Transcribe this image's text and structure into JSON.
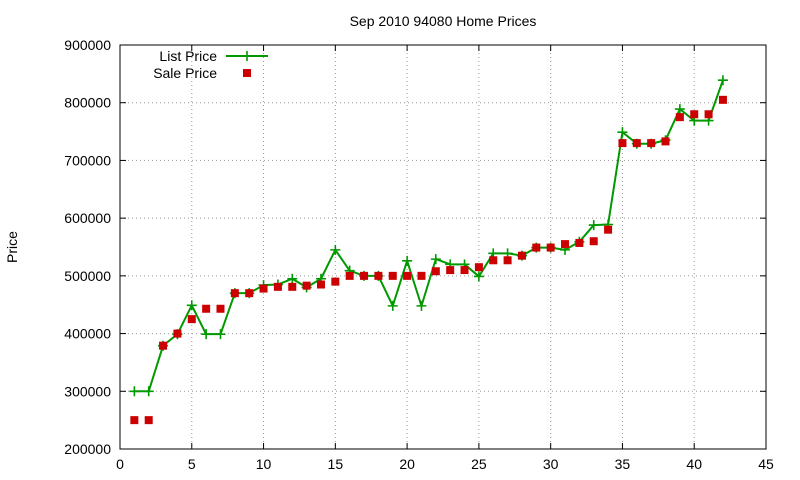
{
  "chart_data": {
    "type": "line",
    "title": "Sep 2010 94080 Home Prices",
    "xlabel": "",
    "ylabel": "Price",
    "xlim": [
      0,
      45
    ],
    "ylim": [
      200000,
      900000
    ],
    "xticks": [
      "0",
      "5",
      "10",
      "15",
      "20",
      "25",
      "30",
      "35",
      "40",
      "45"
    ],
    "yticks": [
      "200000",
      "300000",
      "400000",
      "500000",
      "600000",
      "700000",
      "800000",
      "900000"
    ],
    "grid": true,
    "legend_position": "top-left",
    "series": [
      {
        "name": "List Price",
        "style": "line-with-plus-markers",
        "color": "#009900",
        "x": [
          1,
          2,
          3,
          4,
          5,
          6,
          7,
          8,
          9,
          10,
          11,
          12,
          13,
          14,
          15,
          16,
          17,
          18,
          19,
          20,
          21,
          22,
          23,
          24,
          25,
          26,
          27,
          28,
          29,
          30,
          31,
          32,
          33,
          34,
          35,
          36,
          37,
          38,
          39,
          40,
          41,
          42
        ],
        "values": [
          300000,
          300000,
          379000,
          399000,
          449000,
          399000,
          399000,
          470000,
          470000,
          484000,
          485000,
          495000,
          480000,
          495000,
          545000,
          509000,
          500000,
          500000,
          448000,
          526000,
          448000,
          529000,
          520000,
          520000,
          499000,
          539000,
          539000,
          535000,
          549000,
          549000,
          545000,
          559000,
          588000,
          589000,
          749000,
          729000,
          729000,
          735000,
          789000,
          769000,
          769000,
          839000
        ]
      },
      {
        "name": "Sale Price",
        "style": "square-markers",
        "color": "#cc0000",
        "x": [
          1,
          2,
          3,
          4,
          5,
          6,
          7,
          8,
          9,
          10,
          11,
          12,
          13,
          14,
          15,
          16,
          17,
          18,
          19,
          20,
          21,
          22,
          23,
          24,
          25,
          26,
          27,
          28,
          29,
          30,
          31,
          32,
          33,
          34,
          35,
          36,
          37,
          38,
          39,
          40,
          41,
          42
        ],
        "values": [
          250000,
          250000,
          379000,
          400000,
          425000,
          443000,
          443000,
          470000,
          470000,
          478000,
          481000,
          481000,
          483000,
          485000,
          490000,
          500000,
          500000,
          500000,
          500000,
          500000,
          500000,
          508000,
          510000,
          510000,
          515000,
          527000,
          527000,
          535000,
          549000,
          549000,
          555000,
          557000,
          560000,
          580000,
          730000,
          730000,
          730000,
          733000,
          775000,
          780000,
          780000,
          805000
        ]
      }
    ]
  }
}
